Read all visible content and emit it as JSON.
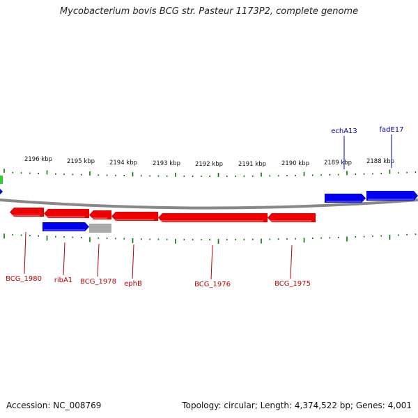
{
  "title": "Mycobacterium bovis BCG str. Pasteur 1173P2, complete genome",
  "footer": {
    "accession": "Accession: NC_008769",
    "summary": "Topology: circular; Length: 4,374,522 bp; Genes: 4,001"
  },
  "colors": {
    "forward_gene": "#0000ee",
    "reverse_gene": "#ee0000",
    "pseudo_gene": "#aaaaaa",
    "ticks": "#007700",
    "backbone": "#888888",
    "highlight": "#33cc33",
    "forward_label": "#0000aa",
    "reverse_label": "#bb0000"
  },
  "scale": {
    "labels": [
      "2196 kbp",
      "2195 kbp",
      "2194 kbp",
      "2193 kbp",
      "2192 kbp",
      "2191 kbp",
      "2190 kbp",
      "2189 kbp",
      "2188 kbp"
    ]
  },
  "genes": {
    "forward": [
      {
        "name": "echA13",
        "labeled": true
      },
      {
        "name": "fadE17",
        "labeled": true
      },
      {
        "name": "",
        "labeled": false
      }
    ],
    "reverse": [
      {
        "name": "BCG_1980"
      },
      {
        "name": "ribA1"
      },
      {
        "name": "BCG_1978"
      },
      {
        "name": "ephB"
      },
      {
        "name": "BCG_1976"
      },
      {
        "name": "BCG_1975"
      }
    ]
  }
}
